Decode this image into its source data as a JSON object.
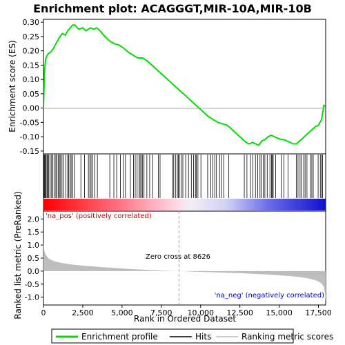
{
  "chart_data": {
    "type": "line",
    "title": "Enrichment plot: ACAGGGT,MIR-10A,MIR-10B",
    "top_panel": {
      "ylabel": "Enrichment score (ES)",
      "ylim": [
        -0.16,
        0.31
      ],
      "yticks": [
        -0.15,
        -0.1,
        -0.05,
        0.0,
        0.05,
        0.1,
        0.15,
        0.2,
        0.25,
        0.3
      ],
      "ytick_labels": [
        "-0.15",
        "-0.10",
        "-0.05",
        "0.00",
        "0.05",
        "0.10",
        "0.15",
        "0.20",
        "0.25",
        "0.30"
      ],
      "series_name": "Enrichment profile",
      "color": "#00dd00",
      "x": [
        0,
        60,
        130,
        200,
        300,
        450,
        600,
        750,
        900,
        1050,
        1200,
        1400,
        1550,
        1700,
        1850,
        2000,
        2250,
        2500,
        2700,
        2850,
        3000,
        3200,
        3400,
        3600,
        3900,
        4200,
        4500,
        4800,
        5100,
        5400,
        5700,
        6000,
        6300,
        6600,
        6900,
        7200,
        7500,
        7800,
        8100,
        8400,
        8700,
        9000,
        9300,
        9600,
        9900,
        10200,
        10500,
        10800,
        11100,
        11400,
        11700,
        12000,
        12300,
        12600,
        12900,
        13100,
        13300,
        13500,
        13700,
        13900,
        14100,
        14300,
        14500,
        14700,
        14900,
        15100,
        15300,
        15500,
        15700,
        15900,
        16100,
        16300,
        16500,
        16700,
        16900,
        17100,
        17300,
        17500,
        17700,
        17850,
        17950
      ],
      "y": [
        0.0,
        0.12,
        0.17,
        0.18,
        0.19,
        0.195,
        0.205,
        0.22,
        0.235,
        0.25,
        0.26,
        0.255,
        0.27,
        0.28,
        0.29,
        0.29,
        0.275,
        0.28,
        0.27,
        0.275,
        0.28,
        0.275,
        0.28,
        0.27,
        0.25,
        0.235,
        0.225,
        0.22,
        0.21,
        0.195,
        0.185,
        0.175,
        0.175,
        0.165,
        0.15,
        0.135,
        0.12,
        0.105,
        0.09,
        0.075,
        0.06,
        0.045,
        0.03,
        0.015,
        0.0,
        -0.015,
        -0.03,
        -0.04,
        -0.05,
        -0.055,
        -0.06,
        -0.075,
        -0.09,
        -0.105,
        -0.12,
        -0.125,
        -0.12,
        -0.125,
        -0.13,
        -0.115,
        -0.11,
        -0.1,
        -0.095,
        -0.1,
        -0.105,
        -0.11,
        -0.11,
        -0.115,
        -0.12,
        -0.125,
        -0.125,
        -0.115,
        -0.105,
        -0.095,
        -0.085,
        -0.075,
        -0.065,
        -0.06,
        -0.04,
        0.01,
        0.005
      ]
    },
    "hits": [
      40,
      80,
      120,
      170,
      230,
      290,
      340,
      430,
      520,
      600,
      700,
      790,
      860,
      940,
      1020,
      1090,
      1180,
      1280,
      1420,
      1540,
      1610,
      1690,
      1760,
      1870,
      1960,
      2380,
      2610,
      2860,
      2950,
      3030,
      3120,
      3260,
      3430,
      4220,
      4480,
      4660,
      4900,
      5090,
      5220,
      5530,
      5730,
      5840,
      5960,
      6080,
      6150,
      6230,
      6310,
      6400,
      6580,
      6760,
      6950,
      7310,
      7420,
      8220,
      8290,
      8400,
      8520,
      8590,
      8650,
      8760,
      8870,
      9050,
      9230,
      9410,
      9550,
      9670,
      9720,
      9830,
      10020,
      10450,
      10640,
      10780,
      10900,
      11010,
      11210,
      11330,
      11470,
      11790,
      12780,
      12950,
      13180,
      13320,
      13490,
      13630,
      13780,
      13860,
      13990,
      14090,
      14240,
      14410,
      14510,
      14560,
      14620,
      14780,
      15130,
      15300,
      15560,
      16090,
      16200,
      16330,
      16420,
      16560,
      16650,
      16770,
      16990,
      17080,
      17170,
      17480,
      17620,
      17700,
      17760
    ],
    "band": {
      "pos_label": "'na_pos' (positively correlated)",
      "neg_label": "'na_neg' (negatively correlated)"
    },
    "bottom_panel": {
      "ylabel": "Ranked list metric (PreRanked)",
      "xlabel": "Rank in Ordered Dataset",
      "ylim": [
        -1.3,
        2.3
      ],
      "yticks": [
        -1.0,
        -0.5,
        0.0,
        0.5,
        1.0,
        1.5,
        2.0
      ],
      "ytick_labels": [
        "-1.0",
        "-0.5",
        "0.0",
        "0.5",
        "1.0",
        "1.5",
        "2.0"
      ],
      "series_name": "Ranking metric scores",
      "x": [
        0,
        50,
        150,
        300,
        500,
        800,
        1200,
        1700,
        2500,
        3500,
        4500,
        5500,
        6500,
        7500,
        8626,
        9500,
        10500,
        11500,
        12500,
        13500,
        14500,
        15500,
        16200,
        16800,
        17200,
        17500,
        17700,
        17850,
        17930,
        17960
      ],
      "y": [
        1.1,
        0.8,
        0.62,
        0.5,
        0.42,
        0.36,
        0.31,
        0.26,
        0.21,
        0.16,
        0.12,
        0.08,
        0.05,
        0.02,
        0.0,
        -0.02,
        -0.04,
        -0.06,
        -0.08,
        -0.11,
        -0.14,
        -0.18,
        -0.22,
        -0.27,
        -0.33,
        -0.4,
        -0.48,
        -0.6,
        -0.9,
        -1.22
      ],
      "zero_cross_label": "Zero cross at 8626",
      "zero_cross": 8626
    },
    "xlim": [
      0,
      17960
    ],
    "xticks": [
      0,
      2500,
      5000,
      7500,
      10000,
      12500,
      15000,
      17500
    ],
    "xtick_labels": [
      "0",
      "2,500",
      "5,000",
      "7,500",
      "10,000",
      "12,500",
      "15,000",
      "17,500"
    ],
    "legend": {
      "placement": "bottom",
      "entries": [
        "Enrichment profile",
        "Hits",
        "Ranking metric scores"
      ]
    }
  }
}
